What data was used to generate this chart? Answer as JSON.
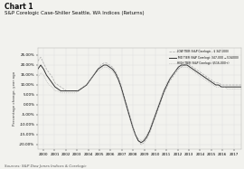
{
  "title_line1": "Chart 1",
  "title_line2": "S&P Corelogic Case-Shiller Seattle, WA Indices (Returns)",
  "source": "Sources: S&P Dow Jones Indices & Corelogic",
  "ylabel": "Percentage change, year ago",
  "legend": [
    {
      "label": "LOW TIER (S&P Corelogic - $ 347,000)",
      "linestyle": "--",
      "color": "#aaaaaa",
      "lw": 0.5
    },
    {
      "label": "MID TIER (S&P Corelogic $347,000 - $516,000)",
      "linestyle": "-",
      "color": "#333333",
      "lw": 0.7
    },
    {
      "label": "HIGH TIER (S&P Corelogic $516,000+)",
      "linestyle": ":",
      "color": "#aaaaaa",
      "lw": 0.5
    }
  ],
  "xlim_years": [
    1999.5,
    2017.7
  ],
  "ylim": [
    -0.225,
    0.285
  ],
  "ytick_vals": [
    -0.2,
    -0.15,
    -0.1,
    -0.05,
    0.0,
    0.05,
    0.1,
    0.15,
    0.2,
    0.25
  ],
  "ytick_labels": [
    "-20.00%",
    "-15.00%",
    "-10.00%",
    "-5.00%",
    "0.00%",
    "5.00%",
    "10.00%",
    "15.00%",
    "20.00%",
    "25.00%"
  ],
  "xticks": [
    2000,
    2001,
    2002,
    2003,
    2004,
    2005,
    2006,
    2007,
    2008,
    2009,
    2010,
    2011,
    2012,
    2013,
    2014,
    2015,
    2016,
    2017
  ],
  "background_color": "#f2f2ee",
  "grid_color": "#dddddd",
  "title_color": "#111111",
  "low_tier": [
    0.22,
    0.24,
    0.21,
    0.18,
    0.16,
    0.14,
    0.11,
    0.1,
    0.09,
    0.08,
    0.07,
    0.07,
    0.07,
    0.07,
    0.07,
    0.08,
    0.09,
    0.1,
    0.12,
    0.14,
    0.16,
    0.18,
    0.2,
    0.21,
    0.21,
    0.2,
    0.19,
    0.17,
    0.14,
    0.1,
    0.05,
    0.0,
    -0.05,
    -0.1,
    -0.15,
    -0.18,
    -0.2,
    -0.19,
    -0.17,
    -0.14,
    -0.1,
    -0.06,
    -0.02,
    0.02,
    0.06,
    0.09,
    0.12,
    0.14,
    0.16,
    0.18,
    0.19,
    0.2,
    0.21,
    0.2,
    0.19,
    0.18,
    0.17,
    0.16,
    0.15,
    0.14,
    0.13,
    0.12,
    0.11,
    0.11,
    0.1,
    0.1,
    0.1,
    0.1,
    0.1,
    0.1,
    0.1,
    0.1
  ],
  "mid_tier": [
    0.18,
    0.2,
    0.18,
    0.15,
    0.13,
    0.11,
    0.09,
    0.08,
    0.07,
    0.07,
    0.07,
    0.07,
    0.07,
    0.07,
    0.07,
    0.08,
    0.09,
    0.1,
    0.12,
    0.14,
    0.16,
    0.18,
    0.19,
    0.2,
    0.2,
    0.19,
    0.18,
    0.16,
    0.13,
    0.09,
    0.04,
    -0.01,
    -0.06,
    -0.11,
    -0.15,
    -0.18,
    -0.19,
    -0.18,
    -0.16,
    -0.13,
    -0.09,
    -0.05,
    -0.01,
    0.03,
    0.07,
    0.1,
    0.13,
    0.15,
    0.17,
    0.19,
    0.2,
    0.2,
    0.2,
    0.19,
    0.18,
    0.17,
    0.16,
    0.15,
    0.14,
    0.13,
    0.12,
    0.11,
    0.1,
    0.1,
    0.09,
    0.09,
    0.09,
    0.09,
    0.09,
    0.09,
    0.09,
    0.09
  ],
  "high_tier": [
    0.14,
    0.16,
    0.15,
    0.12,
    0.1,
    0.09,
    0.07,
    0.07,
    0.06,
    0.06,
    0.06,
    0.06,
    0.06,
    0.06,
    0.07,
    0.08,
    0.09,
    0.1,
    0.12,
    0.14,
    0.16,
    0.17,
    0.18,
    0.19,
    0.19,
    0.18,
    0.17,
    0.15,
    0.12,
    0.08,
    0.03,
    -0.02,
    -0.07,
    -0.11,
    -0.15,
    -0.17,
    -0.18,
    -0.17,
    -0.15,
    -0.12,
    -0.08,
    -0.04,
    0.0,
    0.04,
    0.08,
    0.11,
    0.13,
    0.15,
    0.17,
    0.18,
    0.19,
    0.19,
    0.19,
    0.18,
    0.17,
    0.16,
    0.15,
    0.14,
    0.13,
    0.12,
    0.11,
    0.1,
    0.09,
    0.09,
    0.09,
    0.09,
    0.08,
    0.08,
    0.08,
    0.08,
    0.08,
    0.08
  ],
  "n_points": 72
}
